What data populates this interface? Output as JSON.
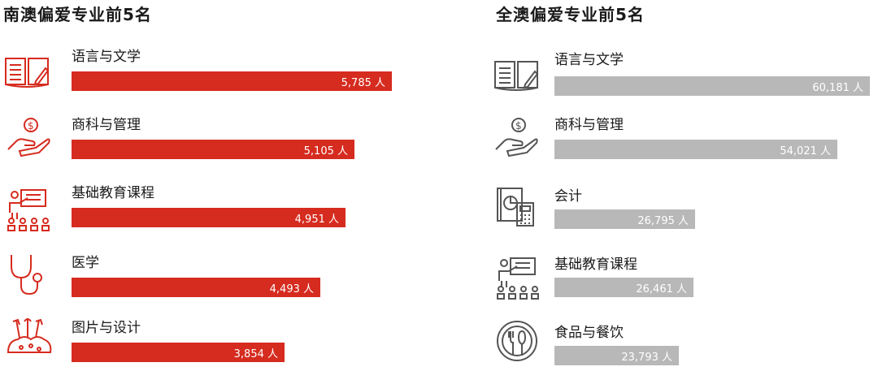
{
  "chart_data": [
    {
      "type": "bar",
      "orientation": "horizontal",
      "title": "南澳偏爱专业前5名",
      "bar_color": "#d62b1f",
      "unit": "人",
      "categories": [
        "语言与文学",
        "商科与管理",
        "基础教育课程",
        "医学",
        "图片与设计"
      ],
      "values": [
        5785,
        5105,
        4951,
        4493,
        3854
      ],
      "value_labels": [
        "5,785 人",
        "5,105 人",
        "4,951 人",
        "4,493 人",
        "3,854 人"
      ],
      "icons": [
        "book-pen-icon",
        "hand-coin-icon",
        "classroom-teacher-icon",
        "stethoscope-icon",
        "art-supplies-icon"
      ]
    },
    {
      "type": "bar",
      "orientation": "horizontal",
      "title": "全澳偏爱专业前5名",
      "bar_color": "#b8b8b8",
      "unit": "人",
      "categories": [
        "语言与文学",
        "商科与管理",
        "会计",
        "基础教育课程",
        "食品与餐饮"
      ],
      "values": [
        60181,
        54021,
        26795,
        26461,
        23793
      ],
      "value_labels": [
        "60,181 人",
        "54,021 人",
        "26,795 人",
        "26,461 人",
        "23,793 人"
      ],
      "icons": [
        "book-pen-icon",
        "hand-coin-icon",
        "calculator-chart-icon",
        "classroom-teacher-icon",
        "plate-cutlery-icon"
      ]
    }
  ]
}
